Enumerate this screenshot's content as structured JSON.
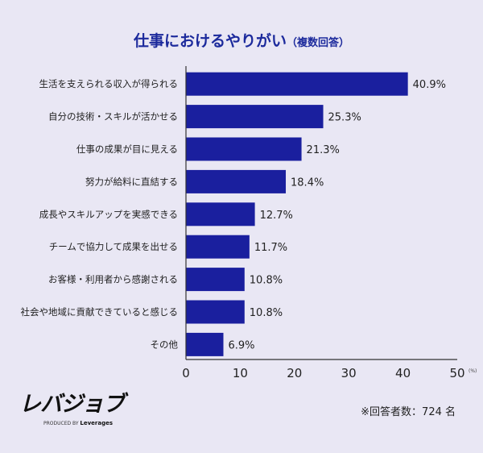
{
  "chart_data": {
    "type": "bar",
    "orientation": "horizontal",
    "title": "仕事におけるやりがい",
    "subtitle": "（複数回答）",
    "categories": [
      "生活を支えられる収入が得られる",
      "自分の技術・スキルが活かせる",
      "仕事の成果が目に見える",
      "努力が給料に直結する",
      "成長やスキルアップを実感できる",
      "チームで協力して成果を出せる",
      "お客様・利用者から感謝される",
      "社会や地域に貢献できていると感じる",
      "その他"
    ],
    "values": [
      40.9,
      25.3,
      21.3,
      18.4,
      12.7,
      11.7,
      10.8,
      10.8,
      6.9
    ],
    "value_labels": [
      "40.9%",
      "25.3%",
      "21.3%",
      "18.4%",
      "12.7%",
      "11.7%",
      "10.8%",
      "10.8%",
      "6.9%"
    ],
    "xlim": [
      0,
      50
    ],
    "xticks": [
      "0",
      "10",
      "20",
      "30",
      "40",
      "50"
    ],
    "xunit": "(%)",
    "grid": false,
    "bar_color": "#1a1f9e"
  },
  "footer": {
    "logo": "レバジョブ",
    "produced_by": "PRODUCED BY",
    "company": "Leverages",
    "note": "※回答者数：724 名"
  }
}
